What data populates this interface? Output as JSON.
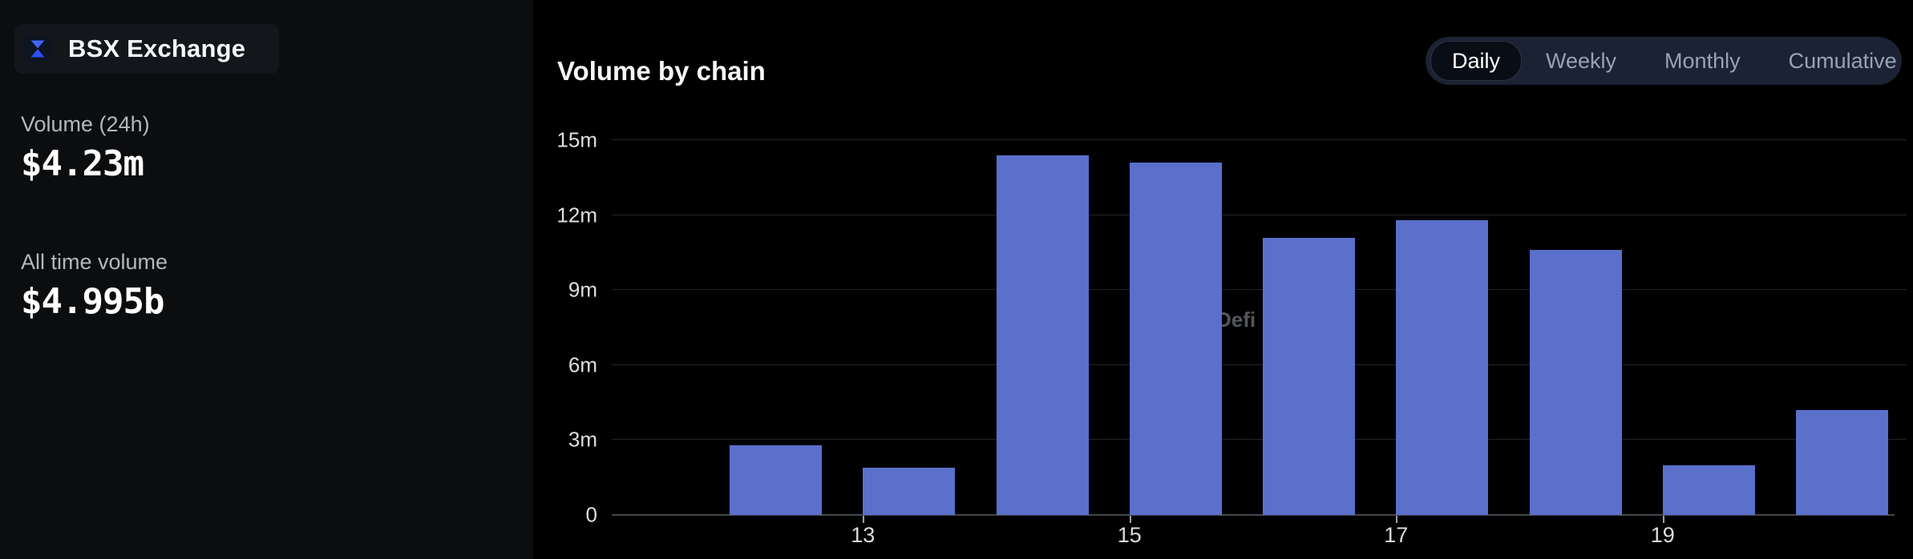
{
  "app": {
    "name": "BSX Exchange",
    "brand_color": "#2f57f0"
  },
  "sidebar": {
    "stats": [
      {
        "label": "Volume (24h)",
        "value": "$4.23m"
      },
      {
        "label": "All time volume",
        "value": "$4.995b"
      }
    ]
  },
  "main": {
    "title": "Volume by chain",
    "tabs": {
      "items": [
        {
          "label": "Daily",
          "active": true
        },
        {
          "label": "Weekly",
          "active": false
        },
        {
          "label": "Monthly",
          "active": false
        },
        {
          "label": "Cumulative",
          "active": false
        }
      ]
    },
    "watermark": "Defi"
  },
  "chart_data": {
    "type": "bar",
    "title": "Volume by chain",
    "x_days": [
      12,
      13,
      14,
      15,
      16,
      17,
      18,
      19,
      20
    ],
    "values_millions": [
      2.8,
      1.9,
      14.4,
      14.1,
      11.1,
      11.8,
      10.6,
      2.0,
      4.2
    ],
    "ylabel": "",
    "xlabel": "",
    "ylim": [
      0,
      15
    ],
    "y_tick_values": [
      0,
      3,
      6,
      9,
      12,
      15
    ],
    "y_tick_labels": [
      "0",
      "3m",
      "6m",
      "9m",
      "12m",
      "15m"
    ],
    "x_tick_days": [
      13,
      15,
      17,
      19
    ],
    "x_tick_labels": [
      "13",
      "15",
      "17",
      "19"
    ],
    "grid": true,
    "legend": "none",
    "bar_color": "#5a70cb",
    "watermark": "Defi"
  }
}
